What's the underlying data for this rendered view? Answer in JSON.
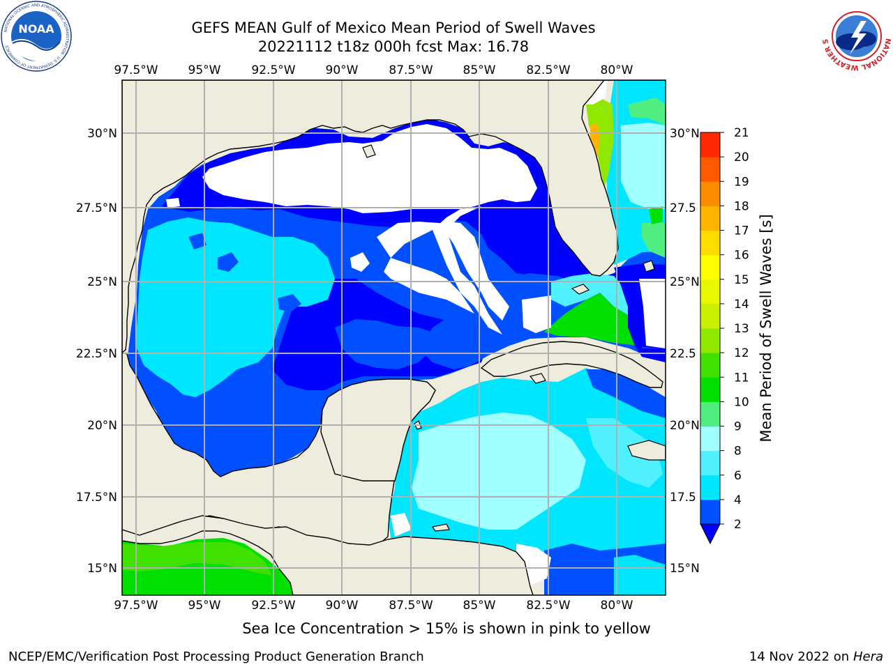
{
  "header": {
    "title_line1": "GEFS MEAN Gulf of Mexico Mean Period of Swell Waves",
    "title_line2": "20221112 t18z 000h fcst   Max: 16.78"
  },
  "logos": {
    "left": "NOAA",
    "left_ring_text": "NATIONAL OCEANIC AND ATMOSPHERIC ADMINISTRATION · U.S. DEPARTMENT OF COMMERCE",
    "right_ring_text": "NATIONAL WEATHER SERVICE"
  },
  "map": {
    "lon_labels": [
      "97.5°W",
      "95°W",
      "92.5°W",
      "90°W",
      "87.5°W",
      "85°W",
      "82.5°W",
      "80°W"
    ],
    "lat_labels_left": [
      "30°N",
      "27.5°N",
      "25°N",
      "22.5°N",
      "20°N",
      "17.5°N",
      "15°N"
    ],
    "lat_labels_right": [
      "30°N",
      "27.5",
      "25°N",
      "22.5",
      "20°N",
      "17.5",
      "15°N"
    ],
    "colors": {
      "land": "#eeecdd",
      "no_data": "#ffffff",
      "grid": "#b0b0b0",
      "coast": "#000000"
    }
  },
  "colorbar": {
    "label": "Mean Period of Swell Waves [s]",
    "ticks": [
      "2",
      "4",
      "6",
      "8",
      "9",
      "10",
      "11",
      "12",
      "13",
      "14",
      "15",
      "16",
      "17",
      "18",
      "19",
      "20",
      "21"
    ],
    "colors": [
      "#0050ff",
      "#00e6ff",
      "#50f0ff",
      "#a0ffff",
      "#50ee80",
      "#00e000",
      "#40e000",
      "#90e800",
      "#c8f000",
      "#e8f800",
      "#ffff00",
      "#ffdc00",
      "#ffb400",
      "#ff8c00",
      "#ff5a00",
      "#ff2800"
    ],
    "under_color": "#0000ff"
  },
  "note": "Sea Ice Concentration > 15% is shown in pink to yellow",
  "footer": {
    "left": "NCEP/EMC/Verification Post Processing Product Generation Branch",
    "right_date": "14 Nov 2022 on",
    "right_host": "Hera"
  }
}
